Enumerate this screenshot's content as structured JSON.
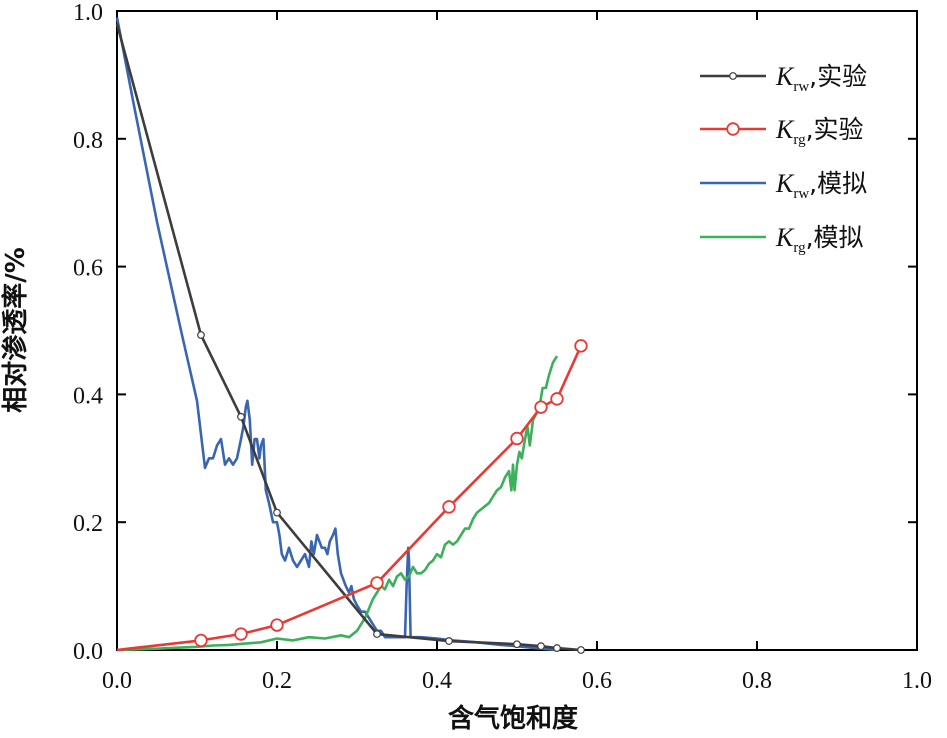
{
  "chart_data": {
    "type": "line",
    "xlabel": "含气饱和度",
    "ylabel": "相对渗透率/%",
    "xlim": [
      0,
      1.0
    ],
    "ylim": [
      0,
      1.0
    ],
    "x_ticks": [
      "0.0",
      "0.2",
      "0.4",
      "0.6",
      "0.8",
      "1.0"
    ],
    "y_ticks": [
      "0.0",
      "0.2",
      "0.4",
      "0.6",
      "0.8",
      "1.0"
    ],
    "grid": false,
    "legend": "top-right",
    "series": [
      {
        "name": "Krw,实验",
        "legend_main": "K",
        "legend_sub": "rw",
        "legend_suffix": ",实验",
        "color": "#3d3d3d",
        "marker": "small-circle",
        "x": [
          0.0,
          0.105,
          0.155,
          0.2,
          0.325,
          0.415,
          0.5,
          0.53,
          0.55,
          0.58
        ],
        "y": [
          0.98,
          0.493,
          0.365,
          0.215,
          0.025,
          0.014,
          0.009,
          0.006,
          0.003,
          0.0
        ]
      },
      {
        "name": "Krg,实验",
        "legend_main": "K",
        "legend_sub": "rg",
        "legend_suffix": ",实验",
        "color": "#e83a35",
        "marker": "large-circle",
        "x": [
          0.0,
          0.105,
          0.155,
          0.2,
          0.325,
          0.415,
          0.5,
          0.53,
          0.55,
          0.58
        ],
        "y": [
          0.0,
          0.015,
          0.025,
          0.039,
          0.105,
          0.224,
          0.331,
          0.38,
          0.393,
          0.476
        ]
      },
      {
        "name": "Krw,模拟",
        "legend_main": "K",
        "legend_sub": "rw",
        "legend_suffix": ",模拟",
        "color": "#3a66b0",
        "marker": "none",
        "x": [
          0.0,
          0.02,
          0.05,
          0.08,
          0.1,
          0.11,
          0.115,
          0.12,
          0.125,
          0.13,
          0.135,
          0.14,
          0.145,
          0.15,
          0.155,
          0.158,
          0.161,
          0.163,
          0.166,
          0.169,
          0.172,
          0.175,
          0.178,
          0.18,
          0.183,
          0.186,
          0.19,
          0.195,
          0.2,
          0.203,
          0.206,
          0.21,
          0.215,
          0.22,
          0.225,
          0.23,
          0.235,
          0.24,
          0.243,
          0.246,
          0.25,
          0.253,
          0.256,
          0.26,
          0.263,
          0.266,
          0.27,
          0.273,
          0.276,
          0.28,
          0.283,
          0.286,
          0.29,
          0.293,
          0.296,
          0.3,
          0.305,
          0.31,
          0.315,
          0.32,
          0.325,
          0.33,
          0.335,
          0.34,
          0.345,
          0.35,
          0.355,
          0.36,
          0.362,
          0.364,
          0.365,
          0.367,
          0.37,
          0.38,
          0.4,
          0.42,
          0.45,
          0.48,
          0.5,
          0.53,
          0.55
        ],
        "y": [
          0.99,
          0.86,
          0.67,
          0.5,
          0.39,
          0.285,
          0.3,
          0.3,
          0.32,
          0.33,
          0.29,
          0.3,
          0.29,
          0.3,
          0.33,
          0.35,
          0.38,
          0.39,
          0.36,
          0.29,
          0.33,
          0.33,
          0.3,
          0.32,
          0.33,
          0.25,
          0.23,
          0.2,
          0.2,
          0.18,
          0.15,
          0.14,
          0.16,
          0.14,
          0.13,
          0.14,
          0.15,
          0.13,
          0.17,
          0.15,
          0.18,
          0.17,
          0.16,
          0.16,
          0.15,
          0.17,
          0.18,
          0.19,
          0.15,
          0.12,
          0.11,
          0.1,
          0.09,
          0.1,
          0.08,
          0.07,
          0.06,
          0.06,
          0.05,
          0.04,
          0.03,
          0.03,
          0.02,
          0.02,
          0.02,
          0.02,
          0.02,
          0.02,
          0.1,
          0.16,
          0.14,
          0.02,
          0.02,
          0.02,
          0.018,
          0.015,
          0.012,
          0.008,
          0.006,
          0.002,
          0.0
        ]
      },
      {
        "name": "Krg,模拟",
        "legend_main": "K",
        "legend_sub": "rg",
        "legend_suffix": ",模拟",
        "color": "#3cb05a",
        "marker": "none",
        "x": [
          0.0,
          0.05,
          0.1,
          0.12,
          0.14,
          0.16,
          0.18,
          0.2,
          0.22,
          0.24,
          0.26,
          0.28,
          0.29,
          0.3,
          0.305,
          0.31,
          0.315,
          0.32,
          0.325,
          0.33,
          0.335,
          0.34,
          0.345,
          0.35,
          0.355,
          0.36,
          0.365,
          0.37,
          0.375,
          0.38,
          0.385,
          0.39,
          0.395,
          0.4,
          0.405,
          0.41,
          0.415,
          0.42,
          0.425,
          0.43,
          0.435,
          0.44,
          0.445,
          0.45,
          0.455,
          0.46,
          0.465,
          0.47,
          0.475,
          0.48,
          0.485,
          0.49,
          0.493,
          0.495,
          0.497,
          0.5,
          0.503,
          0.506,
          0.51,
          0.513,
          0.516,
          0.52,
          0.524,
          0.528,
          0.532,
          0.536,
          0.54,
          0.545,
          0.55
        ],
        "y": [
          0.0,
          0.002,
          0.005,
          0.007,
          0.008,
          0.01,
          0.012,
          0.018,
          0.015,
          0.02,
          0.018,
          0.023,
          0.02,
          0.03,
          0.04,
          0.05,
          0.065,
          0.08,
          0.09,
          0.1,
          0.095,
          0.11,
          0.1,
          0.115,
          0.12,
          0.11,
          0.115,
          0.13,
          0.12,
          0.12,
          0.125,
          0.135,
          0.14,
          0.15,
          0.145,
          0.165,
          0.17,
          0.165,
          0.17,
          0.18,
          0.19,
          0.19,
          0.205,
          0.215,
          0.22,
          0.225,
          0.23,
          0.24,
          0.25,
          0.255,
          0.27,
          0.28,
          0.25,
          0.29,
          0.25,
          0.29,
          0.31,
          0.3,
          0.33,
          0.35,
          0.32,
          0.36,
          0.37,
          0.38,
          0.41,
          0.41,
          0.43,
          0.45,
          0.46
        ]
      }
    ]
  }
}
